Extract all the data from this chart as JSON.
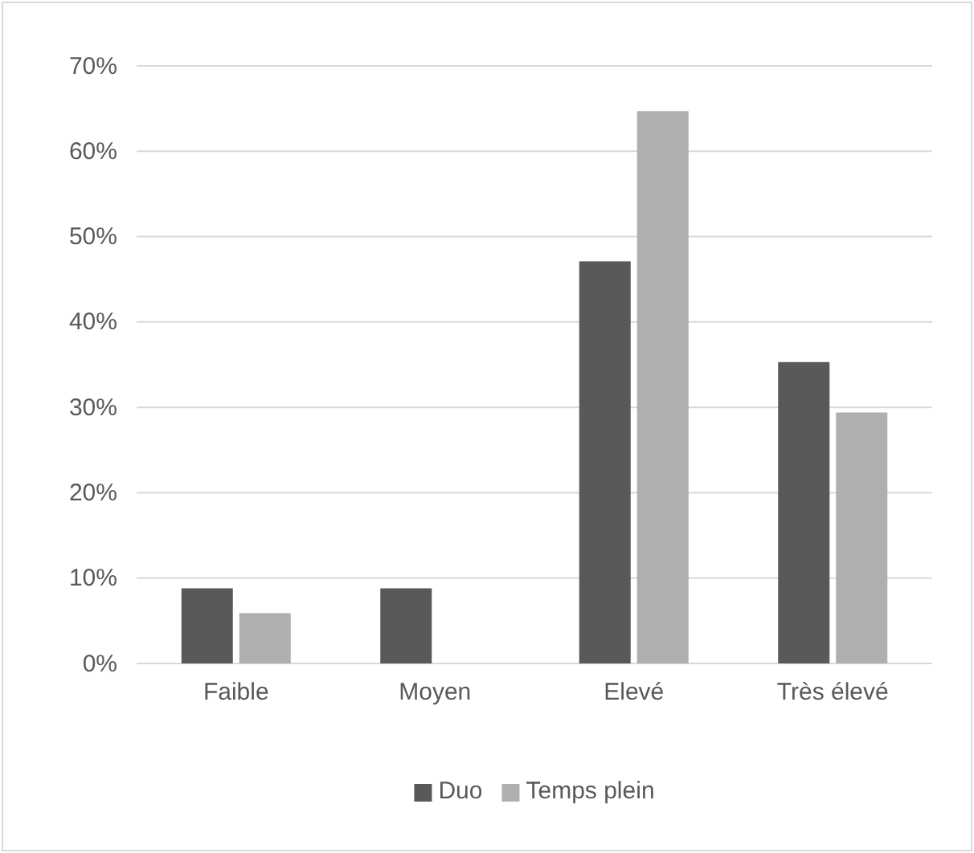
{
  "chart_data": {
    "type": "bar",
    "categories": [
      "Faible",
      "Moyen",
      "Elevé",
      "Très élevé"
    ],
    "series": [
      {
        "name": "Duo",
        "color": "#595959",
        "values": [
          8.8,
          8.8,
          47.1,
          35.3
        ]
      },
      {
        "name": "Temps plein",
        "color": "#afafaf",
        "values": [
          5.9,
          0,
          64.7,
          29.4
        ]
      }
    ],
    "ylim": [
      0,
      70
    ],
    "yticks": [
      {
        "value": 0,
        "label": "0%"
      },
      {
        "value": 10,
        "label": "10%"
      },
      {
        "value": 20,
        "label": "20%"
      },
      {
        "value": 30,
        "label": "30%"
      },
      {
        "value": 40,
        "label": "40%"
      },
      {
        "value": 50,
        "label": "50%"
      },
      {
        "value": 60,
        "label": "60%"
      },
      {
        "value": 70,
        "label": "70%"
      }
    ],
    "grid": "y",
    "legend": "bottom"
  }
}
